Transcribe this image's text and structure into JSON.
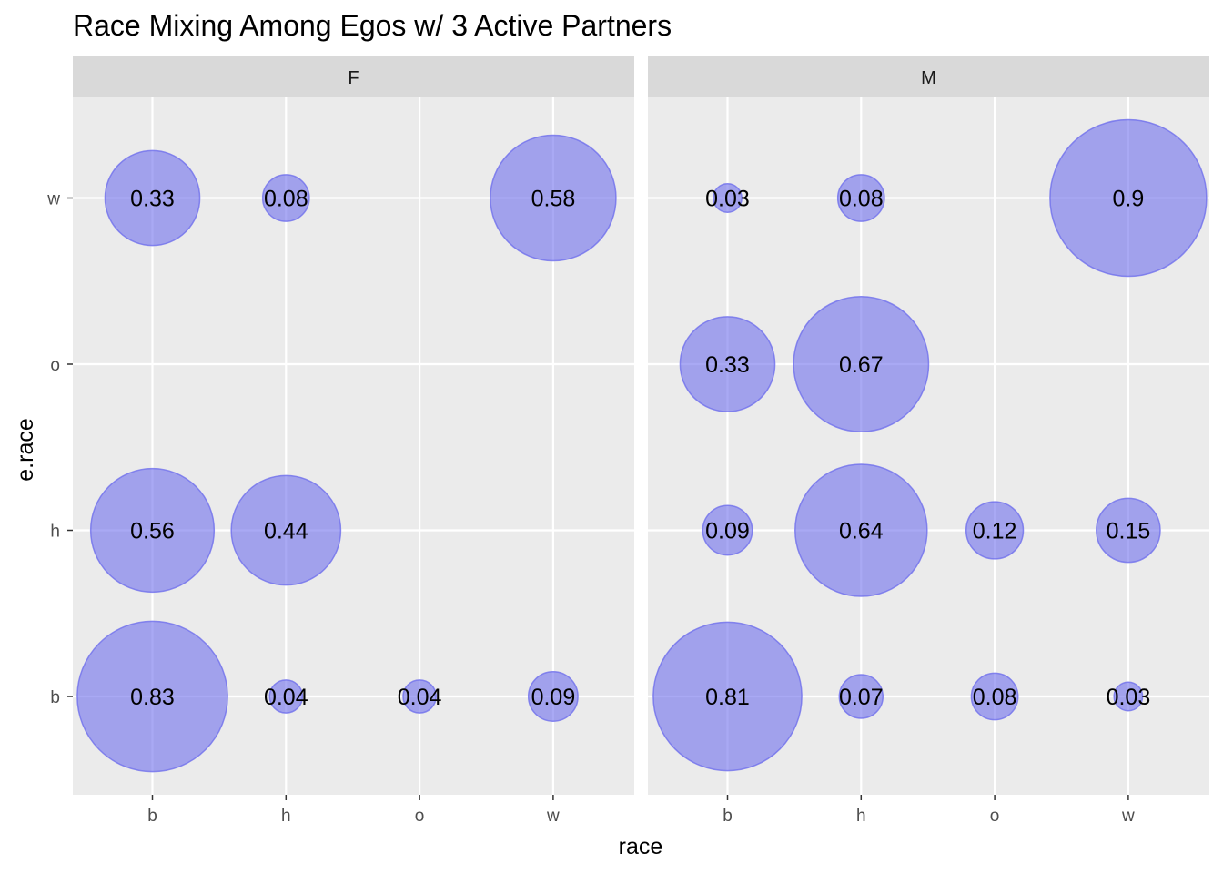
{
  "chart_data": {
    "type": "scatter",
    "title": "Race Mixing Among Egos w/ 3 Active Partners",
    "xlabel": "race",
    "ylabel": "e.race",
    "x_categories": [
      "b",
      "h",
      "o",
      "w"
    ],
    "y_categories": [
      "b",
      "h",
      "o",
      "w"
    ],
    "point_color": "#6f6fec",
    "grid": true,
    "legend": "none",
    "panels": [
      {
        "facet": "F",
        "points": [
          {
            "x": "b",
            "y": "w",
            "value": 0.33,
            "label": "0.33"
          },
          {
            "x": "h",
            "y": "w",
            "value": 0.08,
            "label": "0.08"
          },
          {
            "x": "w",
            "y": "w",
            "value": 0.58,
            "label": "0.58"
          },
          {
            "x": "b",
            "y": "h",
            "value": 0.56,
            "label": "0.56"
          },
          {
            "x": "h",
            "y": "h",
            "value": 0.44,
            "label": "0.44"
          },
          {
            "x": "b",
            "y": "b",
            "value": 0.83,
            "label": "0.83"
          },
          {
            "x": "h",
            "y": "b",
            "value": 0.04,
            "label": "0.04"
          },
          {
            "x": "o",
            "y": "b",
            "value": 0.04,
            "label": "0.04"
          },
          {
            "x": "w",
            "y": "b",
            "value": 0.09,
            "label": "0.09"
          }
        ]
      },
      {
        "facet": "M",
        "points": [
          {
            "x": "b",
            "y": "w",
            "value": 0.03,
            "label": "0.03"
          },
          {
            "x": "h",
            "y": "w",
            "value": 0.08,
            "label": "0.08"
          },
          {
            "x": "w",
            "y": "w",
            "value": 0.9,
            "label": "0.9"
          },
          {
            "x": "b",
            "y": "o",
            "value": 0.33,
            "label": "0.33"
          },
          {
            "x": "h",
            "y": "o",
            "value": 0.67,
            "label": "0.67"
          },
          {
            "x": "b",
            "y": "h",
            "value": 0.09,
            "label": "0.09"
          },
          {
            "x": "h",
            "y": "h",
            "value": 0.64,
            "label": "0.64"
          },
          {
            "x": "o",
            "y": "h",
            "value": 0.12,
            "label": "0.12"
          },
          {
            "x": "w",
            "y": "h",
            "value": 0.15,
            "label": "0.15"
          },
          {
            "x": "b",
            "y": "b",
            "value": 0.81,
            "label": "0.81"
          },
          {
            "x": "h",
            "y": "b",
            "value": 0.07,
            "label": "0.07"
          },
          {
            "x": "o",
            "y": "b",
            "value": 0.08,
            "label": "0.08"
          },
          {
            "x": "w",
            "y": "b",
            "value": 0.03,
            "label": "0.03"
          }
        ]
      }
    ]
  }
}
